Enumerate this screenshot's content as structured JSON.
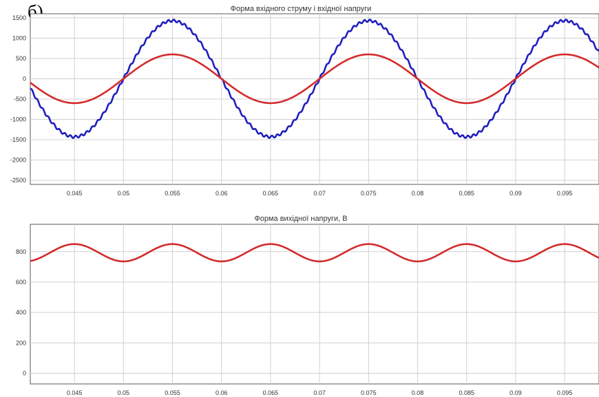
{
  "panel_label": "б)",
  "chart_data": [
    {
      "type": "line",
      "title": "Форма вхідного струму і вхідної напруги",
      "xlim": [
        0.0405,
        0.0985
      ],
      "ylim": [
        -2600,
        1600
      ],
      "grid": true,
      "x_ticks": [
        0.045,
        0.05,
        0.055,
        0.06,
        0.065,
        0.07,
        0.075,
        0.08,
        0.085,
        0.09,
        0.095
      ],
      "x_tick_labels": [
        "0.045",
        "0.05",
        "0.055",
        "0.06",
        "0.065",
        "0.07",
        "0.075",
        "0.08",
        "0.085",
        "0.09",
        "0.095"
      ],
      "y_ticks": [
        1500,
        1000,
        500,
        0,
        -500,
        -1000,
        -1500,
        -2000,
        -2500
      ],
      "y_tick_labels": [
        "1500",
        "1000",
        "500",
        "0",
        "-500",
        "-1000",
        "-1500",
        "-2000",
        "-2500"
      ],
      "series": [
        {
          "kind": "sine",
          "amplitude": 1430,
          "frequency_hz": 50,
          "phase_deg": 180,
          "offset": 0,
          "ripple": 30,
          "color": "#1f1fbf"
        },
        {
          "kind": "sine",
          "amplitude": 600,
          "frequency_hz": 50,
          "phase_deg": 180,
          "offset": 0,
          "ripple": 0,
          "color": "#d42a2a"
        }
      ]
    },
    {
      "type": "line",
      "title": "Форма вихідної напруги, В",
      "xlim": [
        0.0405,
        0.0985
      ],
      "ylim": [
        -70,
        980
      ],
      "grid": true,
      "x_ticks": [
        0.045,
        0.05,
        0.055,
        0.06,
        0.065,
        0.07,
        0.075,
        0.08,
        0.085,
        0.09,
        0.095
      ],
      "x_tick_labels": [
        "0.045",
        "0.05",
        "0.055",
        "0.06",
        "0.065",
        "0.07",
        "0.075",
        "0.08",
        "0.085",
        "0.09",
        "0.095"
      ],
      "y_ticks": [
        800,
        600,
        400,
        200,
        0
      ],
      "y_tick_labels": [
        "800",
        "600",
        "400",
        "200",
        "0"
      ],
      "series": [
        {
          "kind": "sine",
          "amplitude": 57,
          "frequency_hz": 100,
          "phase_deg": -90,
          "offset": 793,
          "ripple": 0,
          "color": "#d42a2a"
        }
      ]
    }
  ]
}
